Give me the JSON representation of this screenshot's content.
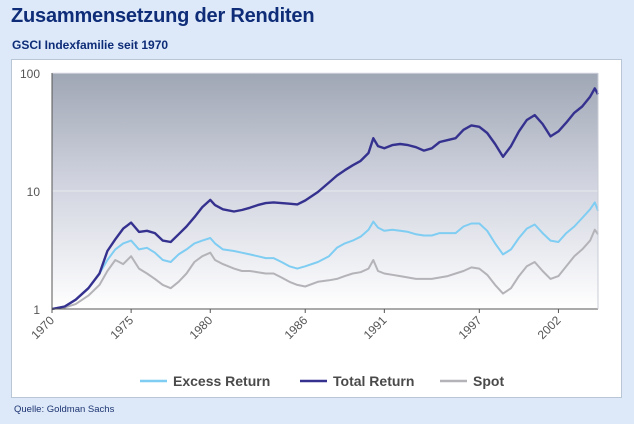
{
  "title": "Zusammensetzung der Renditen",
  "subtitle": "GSCI Indexfamilie seit 1970",
  "source": "Quelle: Goldman Sachs",
  "colors": {
    "excess_return": "#7fcdf2",
    "total_return": "#35318f",
    "spot": "#b4b4b8",
    "background": "#dde9f8",
    "title": "#0e2c78"
  },
  "chart_data": {
    "type": "line",
    "title": "Zusammensetzung der Renditen",
    "subtitle": "GSCI Indexfamilie seit 1970",
    "xlabel": "",
    "ylabel": "",
    "y_scale": "log",
    "ylim": [
      1,
      100
    ],
    "xlim": [
      1970,
      2004.5
    ],
    "y_ticks": [
      {
        "value": 1,
        "label": "1"
      },
      {
        "value": 10,
        "label": "10"
      },
      {
        "value": 100,
        "label": "100"
      }
    ],
    "x_ticks": [
      {
        "value": 1970,
        "label": "1970"
      },
      {
        "value": 1975,
        "label": "1975"
      },
      {
        "value": 1980,
        "label": "1980"
      },
      {
        "value": 1986,
        "label": "1986"
      },
      {
        "value": 1991,
        "label": "1991"
      },
      {
        "value": 1997,
        "label": "1997"
      },
      {
        "value": 2002,
        "label": "2002"
      }
    ],
    "legend_position": "bottom",
    "series": [
      {
        "name": "Excess Return",
        "color": "#7fcdf2",
        "points": [
          [
            1970.0,
            1.0
          ],
          [
            1970.8,
            1.05
          ],
          [
            1971.5,
            1.2
          ],
          [
            1972.3,
            1.5
          ],
          [
            1973.0,
            2.0
          ],
          [
            1973.5,
            2.6
          ],
          [
            1974.0,
            3.2
          ],
          [
            1974.5,
            3.6
          ],
          [
            1975.0,
            3.8
          ],
          [
            1975.5,
            3.2
          ],
          [
            1976.0,
            3.3
          ],
          [
            1976.5,
            3.0
          ],
          [
            1977.0,
            2.6
          ],
          [
            1977.5,
            2.5
          ],
          [
            1978.0,
            2.9
          ],
          [
            1978.5,
            3.2
          ],
          [
            1979.0,
            3.6
          ],
          [
            1979.5,
            3.8
          ],
          [
            1980.0,
            4.0
          ],
          [
            1980.3,
            3.6
          ],
          [
            1980.8,
            3.2
          ],
          [
            1981.5,
            3.1
          ],
          [
            1982.0,
            3.0
          ],
          [
            1982.5,
            2.9
          ],
          [
            1983.0,
            2.8
          ],
          [
            1983.5,
            2.7
          ],
          [
            1984.0,
            2.7
          ],
          [
            1984.5,
            2.5
          ],
          [
            1985.0,
            2.3
          ],
          [
            1985.5,
            2.2
          ],
          [
            1986.0,
            2.3
          ],
          [
            1986.8,
            2.5
          ],
          [
            1987.5,
            2.8
          ],
          [
            1988.0,
            3.3
          ],
          [
            1988.5,
            3.6
          ],
          [
            1989.0,
            3.8
          ],
          [
            1989.5,
            4.1
          ],
          [
            1990.0,
            4.7
          ],
          [
            1990.3,
            5.5
          ],
          [
            1990.6,
            4.9
          ],
          [
            1991.0,
            4.6
          ],
          [
            1991.5,
            4.7
          ],
          [
            1992.0,
            4.6
          ],
          [
            1992.5,
            4.5
          ],
          [
            1993.0,
            4.3
          ],
          [
            1993.5,
            4.2
          ],
          [
            1994.0,
            4.2
          ],
          [
            1994.5,
            4.4
          ],
          [
            1995.0,
            4.4
          ],
          [
            1995.5,
            4.4
          ],
          [
            1996.0,
            5.0
          ],
          [
            1996.5,
            5.3
          ],
          [
            1997.0,
            5.3
          ],
          [
            1997.5,
            4.6
          ],
          [
            1998.0,
            3.6
          ],
          [
            1998.5,
            2.9
          ],
          [
            1999.0,
            3.2
          ],
          [
            1999.5,
            4.0
          ],
          [
            2000.0,
            4.8
          ],
          [
            2000.5,
            5.2
          ],
          [
            2001.0,
            4.4
          ],
          [
            2001.5,
            3.8
          ],
          [
            2002.0,
            3.7
          ],
          [
            2002.5,
            4.4
          ],
          [
            2003.0,
            5.0
          ],
          [
            2003.5,
            5.9
          ],
          [
            2004.0,
            7.0
          ],
          [
            2004.3,
            8.0
          ],
          [
            2004.5,
            6.8
          ]
        ]
      },
      {
        "name": "Total Return",
        "color": "#35318f",
        "points": [
          [
            1970.0,
            1.0
          ],
          [
            1970.8,
            1.05
          ],
          [
            1971.5,
            1.2
          ],
          [
            1972.3,
            1.5
          ],
          [
            1973.0,
            2.0
          ],
          [
            1973.5,
            3.1
          ],
          [
            1974.0,
            3.9
          ],
          [
            1974.5,
            4.8
          ],
          [
            1975.0,
            5.4
          ],
          [
            1975.5,
            4.5
          ],
          [
            1976.0,
            4.6
          ],
          [
            1976.5,
            4.4
          ],
          [
            1977.0,
            3.8
          ],
          [
            1977.5,
            3.7
          ],
          [
            1978.0,
            4.3
          ],
          [
            1978.5,
            5.0
          ],
          [
            1979.0,
            6.0
          ],
          [
            1979.5,
            7.3
          ],
          [
            1980.0,
            8.4
          ],
          [
            1980.3,
            7.6
          ],
          [
            1980.8,
            7.0
          ],
          [
            1981.5,
            6.7
          ],
          [
            1982.0,
            6.9
          ],
          [
            1982.5,
            7.2
          ],
          [
            1983.0,
            7.6
          ],
          [
            1983.5,
            7.9
          ],
          [
            1984.0,
            8.0
          ],
          [
            1984.5,
            7.9
          ],
          [
            1985.0,
            7.8
          ],
          [
            1985.5,
            7.7
          ],
          [
            1986.0,
            8.3
          ],
          [
            1986.8,
            9.8
          ],
          [
            1987.5,
            11.8
          ],
          [
            1988.0,
            13.5
          ],
          [
            1988.5,
            15.0
          ],
          [
            1989.0,
            16.5
          ],
          [
            1989.5,
            18.0
          ],
          [
            1990.0,
            21.0
          ],
          [
            1990.3,
            28.0
          ],
          [
            1990.6,
            24.0
          ],
          [
            1991.0,
            23.0
          ],
          [
            1991.5,
            24.5
          ],
          [
            1992.0,
            25.0
          ],
          [
            1992.5,
            24.5
          ],
          [
            1993.0,
            23.5
          ],
          [
            1993.5,
            22.0
          ],
          [
            1994.0,
            23.0
          ],
          [
            1994.5,
            26.0
          ],
          [
            1995.0,
            27.0
          ],
          [
            1995.5,
            28.0
          ],
          [
            1996.0,
            33.0
          ],
          [
            1996.5,
            36.0
          ],
          [
            1997.0,
            35.0
          ],
          [
            1997.5,
            31.0
          ],
          [
            1998.0,
            25.0
          ],
          [
            1998.5,
            19.5
          ],
          [
            1999.0,
            24.0
          ],
          [
            1999.5,
            32.0
          ],
          [
            2000.0,
            40.0
          ],
          [
            2000.5,
            44.0
          ],
          [
            2001.0,
            37.0
          ],
          [
            2001.5,
            29.0
          ],
          [
            2002.0,
            32.0
          ],
          [
            2002.5,
            38.0
          ],
          [
            2003.0,
            46.0
          ],
          [
            2003.5,
            52.0
          ],
          [
            2004.0,
            63.0
          ],
          [
            2004.3,
            74.0
          ],
          [
            2004.5,
            66.0
          ]
        ]
      },
      {
        "name": "Spot",
        "color": "#b4b4b8",
        "points": [
          [
            1970.0,
            1.0
          ],
          [
            1970.8,
            1.03
          ],
          [
            1971.5,
            1.1
          ],
          [
            1972.3,
            1.3
          ],
          [
            1973.0,
            1.6
          ],
          [
            1973.5,
            2.1
          ],
          [
            1974.0,
            2.6
          ],
          [
            1974.5,
            2.4
          ],
          [
            1975.0,
            2.8
          ],
          [
            1975.5,
            2.2
          ],
          [
            1976.0,
            2.0
          ],
          [
            1976.5,
            1.8
          ],
          [
            1977.0,
            1.6
          ],
          [
            1977.5,
            1.5
          ],
          [
            1978.0,
            1.7
          ],
          [
            1978.5,
            2.0
          ],
          [
            1979.0,
            2.5
          ],
          [
            1979.5,
            2.8
          ],
          [
            1980.0,
            3.0
          ],
          [
            1980.3,
            2.6
          ],
          [
            1980.8,
            2.4
          ],
          [
            1981.5,
            2.2
          ],
          [
            1982.0,
            2.1
          ],
          [
            1982.5,
            2.1
          ],
          [
            1983.0,
            2.05
          ],
          [
            1983.5,
            2.0
          ],
          [
            1984.0,
            2.0
          ],
          [
            1984.5,
            1.85
          ],
          [
            1985.0,
            1.7
          ],
          [
            1985.5,
            1.6
          ],
          [
            1986.0,
            1.55
          ],
          [
            1986.8,
            1.7
          ],
          [
            1987.5,
            1.75
          ],
          [
            1988.0,
            1.8
          ],
          [
            1988.5,
            1.9
          ],
          [
            1989.0,
            2.0
          ],
          [
            1989.5,
            2.05
          ],
          [
            1990.0,
            2.2
          ],
          [
            1990.3,
            2.6
          ],
          [
            1990.6,
            2.1
          ],
          [
            1991.0,
            2.0
          ],
          [
            1991.5,
            1.95
          ],
          [
            1992.0,
            1.9
          ],
          [
            1992.5,
            1.85
          ],
          [
            1993.0,
            1.8
          ],
          [
            1993.5,
            1.8
          ],
          [
            1994.0,
            1.8
          ],
          [
            1994.5,
            1.85
          ],
          [
            1995.0,
            1.9
          ],
          [
            1995.5,
            2.0
          ],
          [
            1996.0,
            2.1
          ],
          [
            1996.5,
            2.25
          ],
          [
            1997.0,
            2.2
          ],
          [
            1997.5,
            1.95
          ],
          [
            1998.0,
            1.6
          ],
          [
            1998.5,
            1.35
          ],
          [
            1999.0,
            1.5
          ],
          [
            1999.5,
            1.9
          ],
          [
            2000.0,
            2.3
          ],
          [
            2000.5,
            2.5
          ],
          [
            2001.0,
            2.1
          ],
          [
            2001.5,
            1.8
          ],
          [
            2002.0,
            1.9
          ],
          [
            2002.5,
            2.3
          ],
          [
            2003.0,
            2.8
          ],
          [
            2003.5,
            3.2
          ],
          [
            2004.0,
            3.8
          ],
          [
            2004.3,
            4.7
          ],
          [
            2004.5,
            4.3
          ]
        ]
      }
    ]
  }
}
